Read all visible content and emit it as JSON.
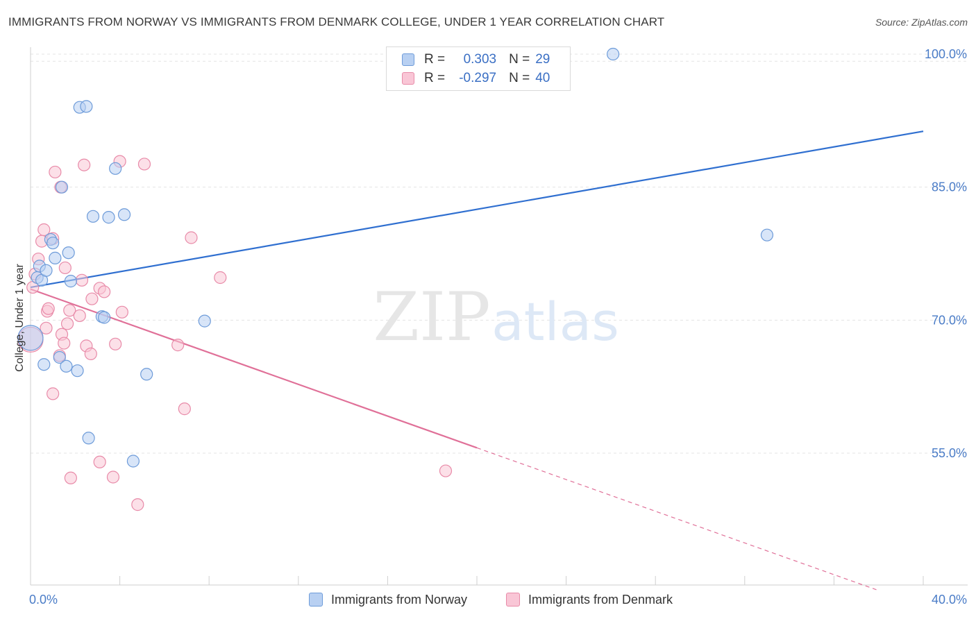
{
  "title": "IMMIGRANTS FROM NORWAY VS IMMIGRANTS FROM DENMARK COLLEGE, UNDER 1 YEAR CORRELATION CHART",
  "source": "Source: ZipAtlas.com",
  "watermark": {
    "zip": "ZIP",
    "atlas": "atlas"
  },
  "legend_top": [
    {
      "r_label": "R =",
      "r_value": "0.303",
      "n_label": "N =",
      "n_value": "29"
    },
    {
      "r_label": "R =",
      "r_value": "-0.297",
      "n_label": "N =",
      "n_value": "40"
    }
  ],
  "legend_bottom": [
    "Immigrants from Norway",
    "Immigrants from Denmark"
  ],
  "colors": {
    "norway_fill": "#b8d0f2",
    "norway_stroke": "#6d9bd9",
    "norway_line": "#2f6fd0",
    "denmark_fill": "#f9c6d6",
    "denmark_stroke": "#e88aa8",
    "denmark_line": "#e07098",
    "grid": "#e3e3e3",
    "tick_text": "#4a7cc7"
  },
  "chart_data": {
    "type": "scatter",
    "title": "IMMIGRANTS FROM NORWAY VS IMMIGRANTS FROM DENMARK COLLEGE, UNDER 1 YEAR CORRELATION CHART",
    "xlabel": "",
    "ylabel": "College, Under 1 year",
    "xlim": [
      0,
      40
    ],
    "ylim": [
      40,
      102
    ],
    "x_tick_labels": [
      "0.0%",
      "40.0%"
    ],
    "y_ticks": [
      55,
      70,
      85,
      100
    ],
    "y_tick_labels": [
      "55.0%",
      "70.0%",
      "85.0%",
      "100.0%"
    ],
    "grid": true,
    "series": [
      {
        "name": "Immigrants from Norway",
        "r": 0.303,
        "n": 29,
        "trend": {
          "x0": 0,
          "y0": 73.7,
          "x1": 40,
          "y1": 91.3
        },
        "points": [
          {
            "x": 0.0,
            "y": 68.0,
            "size": "large"
          },
          {
            "x": 0.3,
            "y": 74.8
          },
          {
            "x": 0.4,
            "y": 76.1
          },
          {
            "x": 0.5,
            "y": 74.5
          },
          {
            "x": 0.7,
            "y": 75.6
          },
          {
            "x": 0.6,
            "y": 65.0
          },
          {
            "x": 0.9,
            "y": 79.1
          },
          {
            "x": 1.0,
            "y": 78.7
          },
          {
            "x": 1.1,
            "y": 77.0
          },
          {
            "x": 1.3,
            "y": 65.8
          },
          {
            "x": 1.4,
            "y": 85.0
          },
          {
            "x": 1.6,
            "y": 64.8
          },
          {
            "x": 1.7,
            "y": 77.6
          },
          {
            "x": 1.8,
            "y": 74.4
          },
          {
            "x": 2.1,
            "y": 64.3
          },
          {
            "x": 2.2,
            "y": 94.0
          },
          {
            "x": 2.5,
            "y": 94.1
          },
          {
            "x": 2.6,
            "y": 56.7
          },
          {
            "x": 2.8,
            "y": 81.7
          },
          {
            "x": 3.2,
            "y": 70.4
          },
          {
            "x": 3.3,
            "y": 70.3
          },
          {
            "x": 3.5,
            "y": 81.6
          },
          {
            "x": 3.8,
            "y": 87.1
          },
          {
            "x": 4.2,
            "y": 81.9
          },
          {
            "x": 4.6,
            "y": 54.1
          },
          {
            "x": 5.2,
            "y": 63.9
          },
          {
            "x": 7.8,
            "y": 69.9
          },
          {
            "x": 26.1,
            "y": 100.0
          },
          {
            "x": 33.0,
            "y": 79.6
          }
        ]
      },
      {
        "name": "Immigrants from Denmark",
        "r": -0.297,
        "n": 40,
        "trend": {
          "x0": 0,
          "y0": 73.5,
          "x1": 20,
          "y1": 55.6
        },
        "trend_dashed": {
          "x0": 20,
          "y0": 55.6,
          "x1": 37.9,
          "y1": 39.6
        },
        "points": [
          {
            "x": 0.0,
            "y": 67.8,
            "size": "large"
          },
          {
            "x": 0.1,
            "y": 73.7
          },
          {
            "x": 0.2,
            "y": 75.2
          },
          {
            "x": 0.35,
            "y": 76.9
          },
          {
            "x": 0.5,
            "y": 78.9
          },
          {
            "x": 0.6,
            "y": 80.2
          },
          {
            "x": 0.7,
            "y": 69.1
          },
          {
            "x": 0.75,
            "y": 71.0
          },
          {
            "x": 0.8,
            "y": 71.3
          },
          {
            "x": 1.0,
            "y": 79.2
          },
          {
            "x": 1.0,
            "y": 61.7
          },
          {
            "x": 1.1,
            "y": 86.7
          },
          {
            "x": 1.3,
            "y": 66.0
          },
          {
            "x": 1.35,
            "y": 85.0
          },
          {
            "x": 1.4,
            "y": 68.4
          },
          {
            "x": 1.5,
            "y": 67.4
          },
          {
            "x": 1.55,
            "y": 75.9
          },
          {
            "x": 1.65,
            "y": 69.6
          },
          {
            "x": 1.75,
            "y": 71.1
          },
          {
            "x": 1.8,
            "y": 52.2
          },
          {
            "x": 2.2,
            "y": 70.5
          },
          {
            "x": 2.3,
            "y": 74.5
          },
          {
            "x": 2.4,
            "y": 87.5
          },
          {
            "x": 2.5,
            "y": 67.1
          },
          {
            "x": 2.7,
            "y": 66.2
          },
          {
            "x": 2.75,
            "y": 72.4
          },
          {
            "x": 3.1,
            "y": 73.6
          },
          {
            "x": 3.1,
            "y": 54.0
          },
          {
            "x": 3.3,
            "y": 73.2
          },
          {
            "x": 3.7,
            "y": 52.3
          },
          {
            "x": 3.8,
            "y": 67.3
          },
          {
            "x": 4.0,
            "y": 87.9
          },
          {
            "x": 4.1,
            "y": 70.9
          },
          {
            "x": 4.8,
            "y": 49.2
          },
          {
            "x": 5.1,
            "y": 87.6
          },
          {
            "x": 6.6,
            "y": 67.2
          },
          {
            "x": 6.9,
            "y": 60.0
          },
          {
            "x": 7.2,
            "y": 79.3
          },
          {
            "x": 8.5,
            "y": 74.8
          },
          {
            "x": 18.6,
            "y": 53.0
          }
        ]
      }
    ]
  }
}
